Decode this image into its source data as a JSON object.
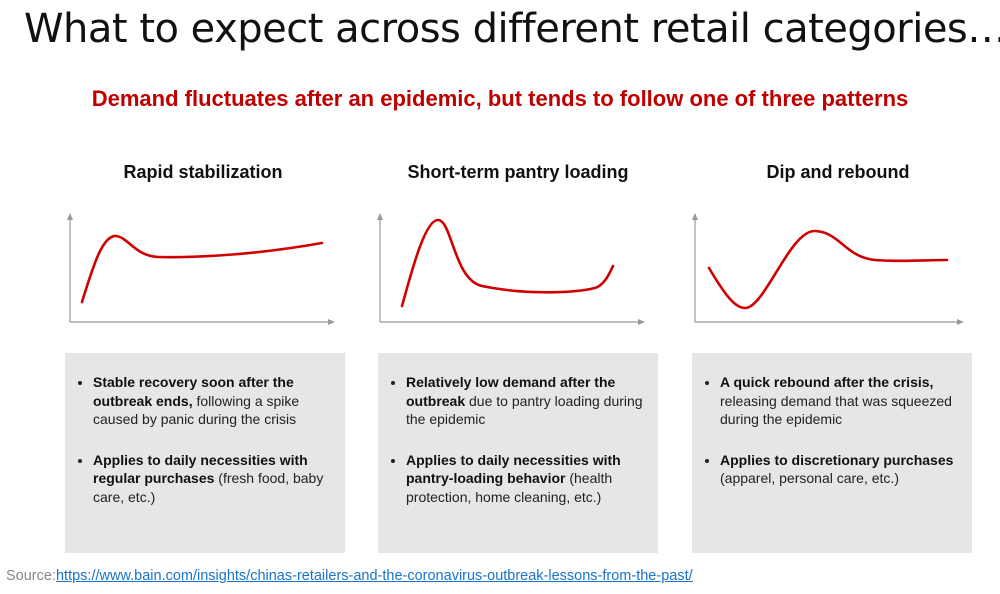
{
  "title": "What to expect across different retail categories…",
  "subtitle": "Demand fluctuates after an epidemic, but tends to follow one of three patterns",
  "colors": {
    "accent": "#c00000",
    "box_bg": "#e6e6e6",
    "curve": "#d10000",
    "axis": "#999999"
  },
  "patterns": [
    {
      "title": "Rapid stabilization",
      "bullet1_bold": "Stable recovery soon after the outbreak ends,",
      "bullet1_rest": " following a spike caused by panic during the crisis",
      "bullet2_bold": "Applies to daily necessities with regular purchases",
      "bullet2_rest": " (fresh food, baby care, etc.)"
    },
    {
      "title": "Short-term pantry loading",
      "bullet1_bold": "Relatively low demand after the outbreak",
      "bullet1_rest": " due to pantry loading during the epidemic",
      "bullet2_bold": "Applies to daily necessities with pantry-loading behavior",
      "bullet2_rest": " (health protection, home cleaning, etc.)"
    },
    {
      "title": "Dip and rebound",
      "bullet1_bold": "A quick rebound after the crisis,",
      "bullet1_rest": " releasing demand that was squeezed during the epidemic",
      "bullet2_bold": "Applies to discretionary purchases",
      "bullet2_rest": " (apparel, personal care, etc.)"
    }
  ],
  "source": {
    "label": "Source:",
    "url": "https://www.bain.com/insights/chinas-retailers-and-the-coronavirus-outbreak-lessons-from-the-past/"
  }
}
